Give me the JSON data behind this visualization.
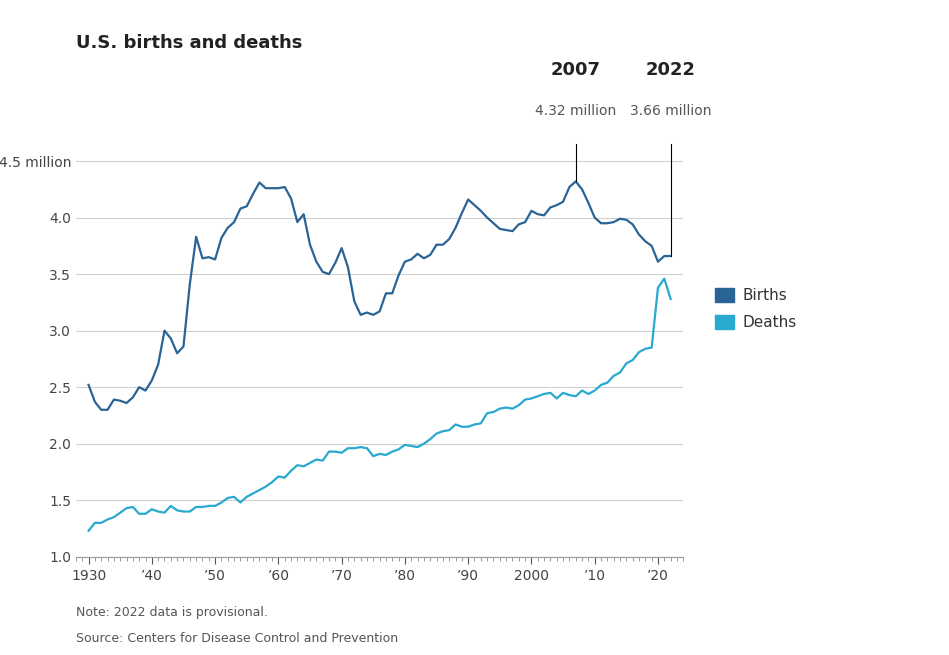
{
  "title": "U.S. births and deaths",
  "note": "Note: 2022 data is provisional.",
  "source": "Source: Centers for Disease Control and Prevention",
  "ylim": [
    1.0,
    4.65
  ],
  "yticks": [
    1.0,
    1.5,
    2.0,
    2.5,
    3.0,
    3.5,
    4.0,
    4.5
  ],
  "ytick_labels": [
    "1.0",
    "1.5",
    "2.0",
    "2.5",
    "3.0",
    "3.5",
    "4.0",
    "4.5 million"
  ],
  "xlim": [
    1928,
    2024
  ],
  "xticks": [
    1930,
    1940,
    1950,
    1960,
    1970,
    1980,
    1990,
    2000,
    2010,
    2020
  ],
  "xtick_labels": [
    "1930",
    "’40",
    "’50",
    "’60",
    "’70",
    "’80",
    "’90",
    "2000",
    "’10",
    "’20"
  ],
  "annotation_2007_year": "2007",
  "annotation_2007_val": "4.32 million",
  "annotation_2022_year": "2022",
  "annotation_2022_val": "3.66 million",
  "births_color": "#2a6496",
  "deaths_color": "#29a8d0",
  "background_color": "#ffffff",
  "grid_color": "#d0d0d0",
  "births_data": {
    "years": [
      1930,
      1931,
      1932,
      1933,
      1934,
      1935,
      1936,
      1937,
      1938,
      1939,
      1940,
      1941,
      1942,
      1943,
      1944,
      1945,
      1946,
      1947,
      1948,
      1949,
      1950,
      1951,
      1952,
      1953,
      1954,
      1955,
      1956,
      1957,
      1958,
      1959,
      1960,
      1961,
      1962,
      1963,
      1964,
      1965,
      1966,
      1967,
      1968,
      1969,
      1970,
      1971,
      1972,
      1973,
      1974,
      1975,
      1976,
      1977,
      1978,
      1979,
      1980,
      1981,
      1982,
      1983,
      1984,
      1985,
      1986,
      1987,
      1988,
      1989,
      1990,
      1991,
      1992,
      1993,
      1994,
      1995,
      1996,
      1997,
      1998,
      1999,
      2000,
      2001,
      2002,
      2003,
      2004,
      2005,
      2006,
      2007,
      2008,
      2009,
      2010,
      2011,
      2012,
      2013,
      2014,
      2015,
      2016,
      2017,
      2018,
      2019,
      2020,
      2021,
      2022
    ],
    "values": [
      2.52,
      2.37,
      2.3,
      2.3,
      2.39,
      2.38,
      2.36,
      2.41,
      2.5,
      2.47,
      2.56,
      2.7,
      3.0,
      2.93,
      2.8,
      2.86,
      3.41,
      3.83,
      3.64,
      3.65,
      3.63,
      3.82,
      3.91,
      3.96,
      4.08,
      4.1,
      4.21,
      4.31,
      4.26,
      4.26,
      4.26,
      4.27,
      4.17,
      3.96,
      4.03,
      3.76,
      3.61,
      3.52,
      3.5,
      3.6,
      3.73,
      3.56,
      3.26,
      3.14,
      3.16,
      3.14,
      3.17,
      3.33,
      3.33,
      3.49,
      3.61,
      3.63,
      3.68,
      3.64,
      3.67,
      3.76,
      3.76,
      3.81,
      3.91,
      4.04,
      4.16,
      4.11,
      4.06,
      4.0,
      3.95,
      3.9,
      3.89,
      3.88,
      3.94,
      3.96,
      4.06,
      4.03,
      4.02,
      4.09,
      4.11,
      4.14,
      4.27,
      4.32,
      4.25,
      4.13,
      4.0,
      3.95,
      3.95,
      3.96,
      3.99,
      3.98,
      3.94,
      3.85,
      3.79,
      3.75,
      3.61,
      3.66,
      3.66
    ]
  },
  "deaths_data": {
    "years": [
      1930,
      1931,
      1932,
      1933,
      1934,
      1935,
      1936,
      1937,
      1938,
      1939,
      1940,
      1941,
      1942,
      1943,
      1944,
      1945,
      1946,
      1947,
      1948,
      1949,
      1950,
      1951,
      1952,
      1953,
      1954,
      1955,
      1956,
      1957,
      1958,
      1959,
      1960,
      1961,
      1962,
      1963,
      1964,
      1965,
      1966,
      1967,
      1968,
      1969,
      1970,
      1971,
      1972,
      1973,
      1974,
      1975,
      1976,
      1977,
      1978,
      1979,
      1980,
      1981,
      1982,
      1983,
      1984,
      1985,
      1986,
      1987,
      1988,
      1989,
      1990,
      1991,
      1992,
      1993,
      1994,
      1995,
      1996,
      1997,
      1998,
      1999,
      2000,
      2001,
      2002,
      2003,
      2004,
      2005,
      2006,
      2007,
      2008,
      2009,
      2010,
      2011,
      2012,
      2013,
      2014,
      2015,
      2016,
      2017,
      2018,
      2019,
      2020,
      2021,
      2022
    ],
    "values": [
      1.23,
      1.3,
      1.3,
      1.33,
      1.35,
      1.39,
      1.43,
      1.44,
      1.38,
      1.38,
      1.42,
      1.4,
      1.39,
      1.45,
      1.41,
      1.4,
      1.4,
      1.44,
      1.44,
      1.45,
      1.45,
      1.48,
      1.52,
      1.53,
      1.48,
      1.53,
      1.56,
      1.59,
      1.62,
      1.66,
      1.71,
      1.7,
      1.76,
      1.81,
      1.8,
      1.83,
      1.86,
      1.85,
      1.93,
      1.93,
      1.92,
      1.96,
      1.96,
      1.97,
      1.96,
      1.89,
      1.91,
      1.9,
      1.93,
      1.95,
      1.99,
      1.98,
      1.97,
      2.0,
      2.04,
      2.09,
      2.11,
      2.12,
      2.17,
      2.15,
      2.15,
      2.17,
      2.18,
      2.27,
      2.28,
      2.31,
      2.32,
      2.31,
      2.34,
      2.39,
      2.4,
      2.42,
      2.44,
      2.45,
      2.4,
      2.45,
      2.43,
      2.42,
      2.47,
      2.44,
      2.47,
      2.52,
      2.54,
      2.6,
      2.63,
      2.71,
      2.74,
      2.81,
      2.84,
      2.85,
      3.38,
      3.46,
      3.28
    ]
  },
  "legend_births_color": "#2a6496",
  "legend_deaths_color": "#29a8d0"
}
